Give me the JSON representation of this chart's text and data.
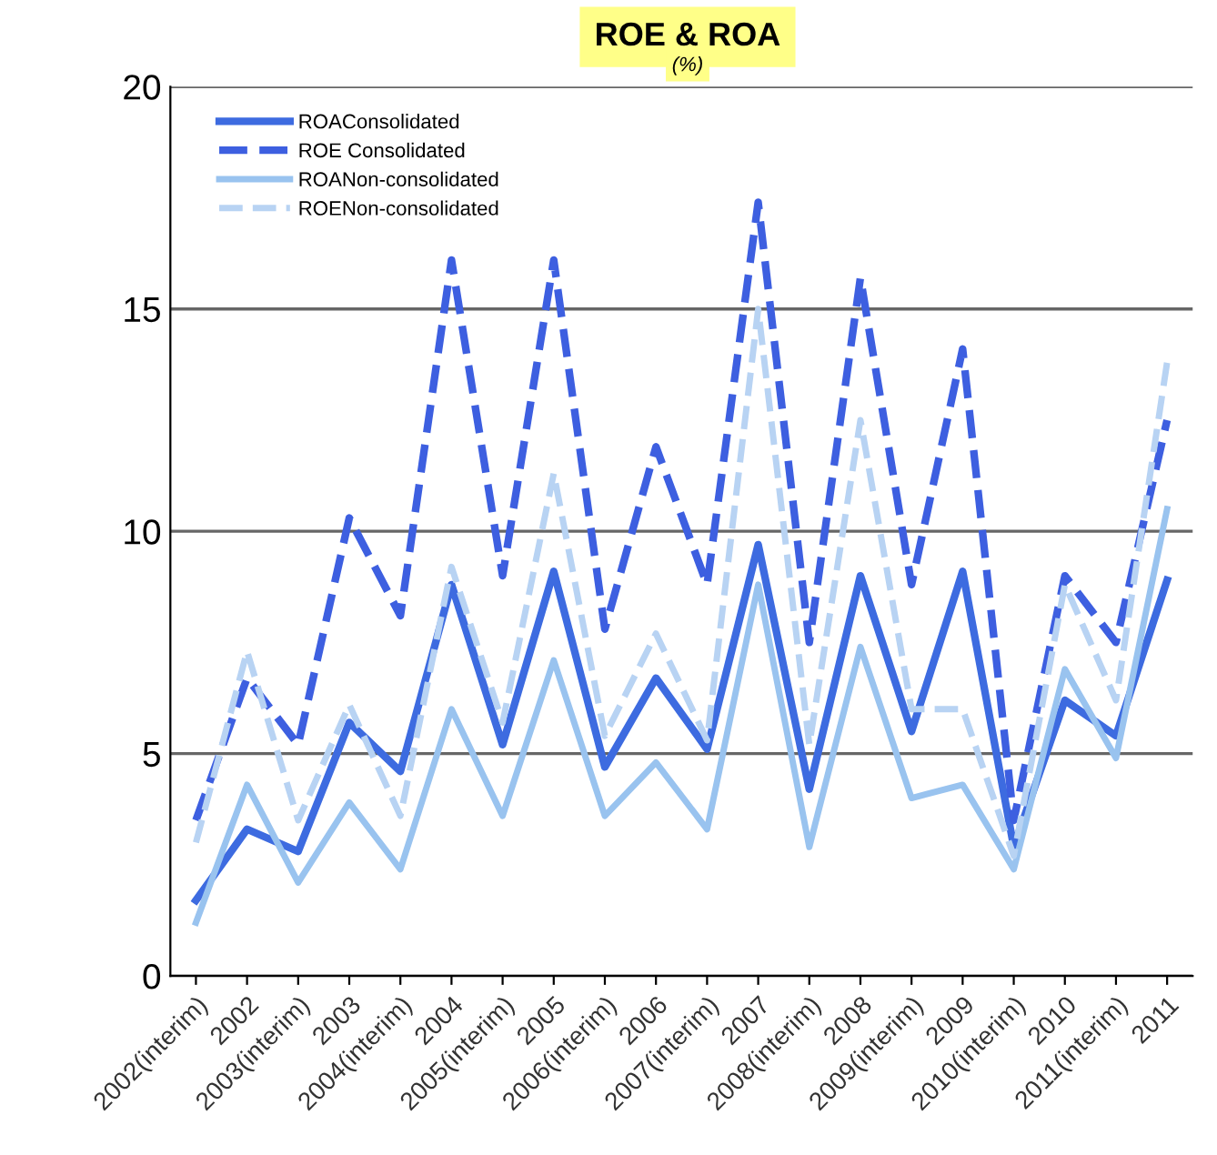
{
  "chart_data": {
    "type": "line",
    "title": "ROE & ROA",
    "subtitle": "(%)",
    "categories": [
      "2002(interim)",
      "2002",
      "2003(interim)",
      "2003",
      "2004(interim)",
      "2004",
      "2005(interim)",
      "2005",
      "2006(interim)",
      "2006",
      "2007(interim)",
      "2007",
      "2008(interim)",
      "2008",
      "2009(interim)",
      "2009",
      "2010(interim)",
      "2010",
      "2011(interim)",
      "2011"
    ],
    "series": [
      {
        "name": "ROAConsolidated",
        "color": "#3d6be0",
        "line_style": "solid",
        "values": [
          1.7,
          3.3,
          2.8,
          5.7,
          4.6,
          8.8,
          5.2,
          9.1,
          4.7,
          6.7,
          5.1,
          9.7,
          4.2,
          9.0,
          5.5,
          9.1,
          2.9,
          6.2,
          5.4,
          8.9
        ]
      },
      {
        "name": "ROE Consolidated",
        "color": "#3d5fe0",
        "line_style": "dashed",
        "values": [
          3.5,
          6.7,
          5.2,
          10.3,
          8.1,
          16.1,
          9.0,
          16.1,
          7.8,
          11.9,
          8.8,
          17.4,
          7.5,
          15.7,
          8.8,
          14.1,
          3.5,
          9.0,
          7.5,
          12.5
        ]
      },
      {
        "name": "ROANon-consolidated",
        "color": "#99c3ef",
        "line_style": "solid",
        "values": [
          1.2,
          4.3,
          2.1,
          3.9,
          2.4,
          6.0,
          3.6,
          7.1,
          3.6,
          4.8,
          3.3,
          8.8,
          2.9,
          7.4,
          4.0,
          4.3,
          2.4,
          6.9,
          4.9,
          10.5
        ]
      },
      {
        "name": "ROENon-consolidated",
        "color": "#b8d3f3",
        "line_style": "dashed",
        "values": [
          3.0,
          7.3,
          3.5,
          6.1,
          3.6,
          9.2,
          5.7,
          11.3,
          5.4,
          7.7,
          5.3,
          15.0,
          5.2,
          12.5,
          6.0,
          6.0,
          2.7,
          8.8,
          6.2,
          13.8
        ]
      }
    ],
    "ylim": [
      0,
      20
    ],
    "yticks": [
      0,
      5,
      10,
      15,
      20
    ],
    "grid": "y",
    "legend": "top left",
    "marker": "none"
  }
}
